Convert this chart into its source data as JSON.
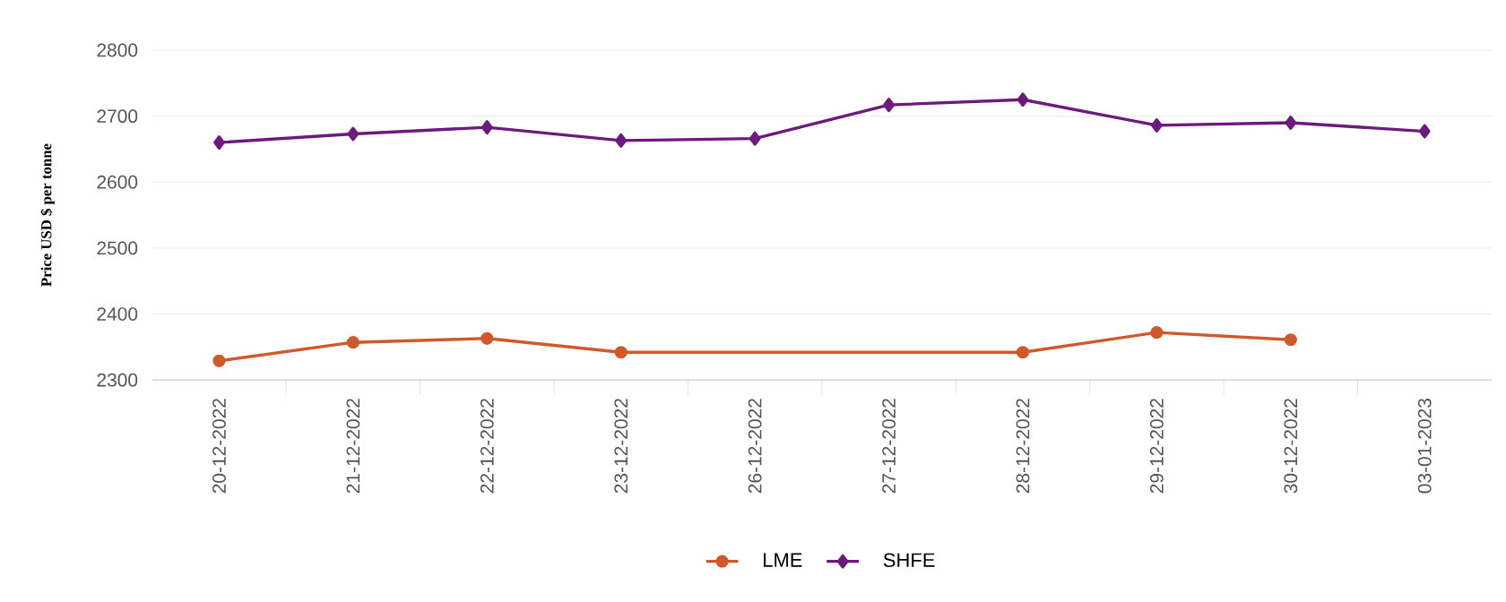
{
  "chart_data": {
    "type": "line",
    "ylabel": "Price USD $ per tonne",
    "categories": [
      "20-12-2022",
      "21-12-2022",
      "22-12-2022",
      "23-12-2022",
      "26-12-2022",
      "27-12-2022",
      "28-12-2022",
      "29-12-2022",
      "30-12-2022",
      "03-01-2023"
    ],
    "series": [
      {
        "name": "LME",
        "color": "#d0592b",
        "marker": "circle",
        "values": [
          2329,
          2357,
          2363,
          2342,
          null,
          null,
          2342,
          2372,
          2361,
          null
        ]
      },
      {
        "name": "SHFE",
        "color": "#6d1a7e",
        "marker": "diamond",
        "values": [
          2660,
          2673,
          2683,
          2663,
          2666,
          2717,
          2725,
          2686,
          2690,
          2677
        ]
      }
    ],
    "ylim": [
      2300,
      2800
    ],
    "yticks": [
      2300,
      2400,
      2500,
      2600,
      2700,
      2800
    ],
    "grid": "y",
    "legend": "bottom",
    "line_style": "solid"
  }
}
